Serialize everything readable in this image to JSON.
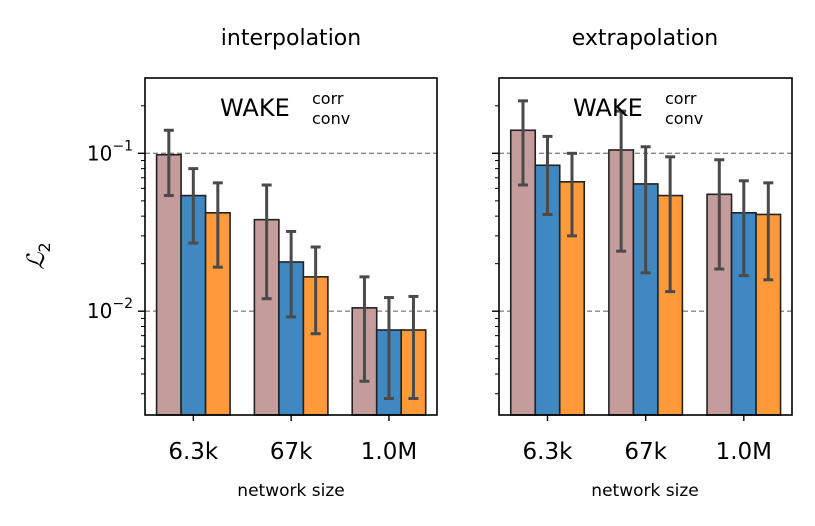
{
  "chart_data": {
    "type": "bar",
    "ylabel": "ℒ",
    "ylabel_subscript": "2",
    "yscale": "log",
    "ylim": [
      0.0022,
      0.3
    ],
    "ytick_values": [
      0.01,
      0.1
    ],
    "ytick_labels": [
      {
        "base": "10",
        "exp": "−2"
      },
      {
        "base": "10",
        "exp": "−1"
      }
    ],
    "gridlines": [
      0.01,
      0.1
    ],
    "colors": {
      "series1": "#c49c9c",
      "series2": "#3f88c2",
      "series3": "#ff9a3a",
      "edge": "#222222",
      "errorbar": "#4a4a4a",
      "grid": "#888888"
    },
    "panels": [
      {
        "title": "interpolation",
        "annotation": {
          "main": "WAKE",
          "sup": "corr",
          "sub": "conv"
        },
        "xlabel": "network size",
        "categories": [
          "6.3k",
          "67k",
          "1.0M"
        ],
        "series": [
          {
            "values": [
              0.098,
              0.038,
              0.0105
            ],
            "err_low": [
              0.054,
              0.012,
              0.0036
            ],
            "err_high": [
              0.14,
              0.063,
              0.0165
            ]
          },
          {
            "values": [
              0.054,
              0.0205,
              0.0076
            ],
            "err_low": [
              0.027,
              0.0092,
              0.0028
            ],
            "err_high": [
              0.08,
              0.032,
              0.0122
            ]
          },
          {
            "values": [
              0.042,
              0.0165,
              0.0076
            ],
            "err_low": [
              0.019,
              0.0072,
              0.0028
            ],
            "err_high": [
              0.065,
              0.0255,
              0.0124
            ]
          }
        ]
      },
      {
        "title": "extrapolation",
        "annotation": {
          "main": "WAKE",
          "sup": "corr",
          "sub": "conv"
        },
        "xlabel": "network size",
        "categories": [
          "6.3k",
          "67k",
          "1.0M"
        ],
        "series": [
          {
            "values": [
              0.14,
              0.105,
              0.055
            ],
            "err_low": [
              0.063,
              0.024,
              0.0185
            ],
            "err_high": [
              0.215,
              0.185,
              0.091
            ]
          },
          {
            "values": [
              0.084,
              0.064,
              0.042
            ],
            "err_low": [
              0.041,
              0.0175,
              0.0168
            ],
            "err_high": [
              0.128,
              0.11,
              0.067
            ]
          },
          {
            "values": [
              0.066,
              0.054,
              0.041
            ],
            "err_low": [
              0.03,
              0.0133,
              0.0158
            ],
            "err_high": [
              0.1,
              0.095,
              0.065
            ]
          }
        ]
      }
    ]
  }
}
